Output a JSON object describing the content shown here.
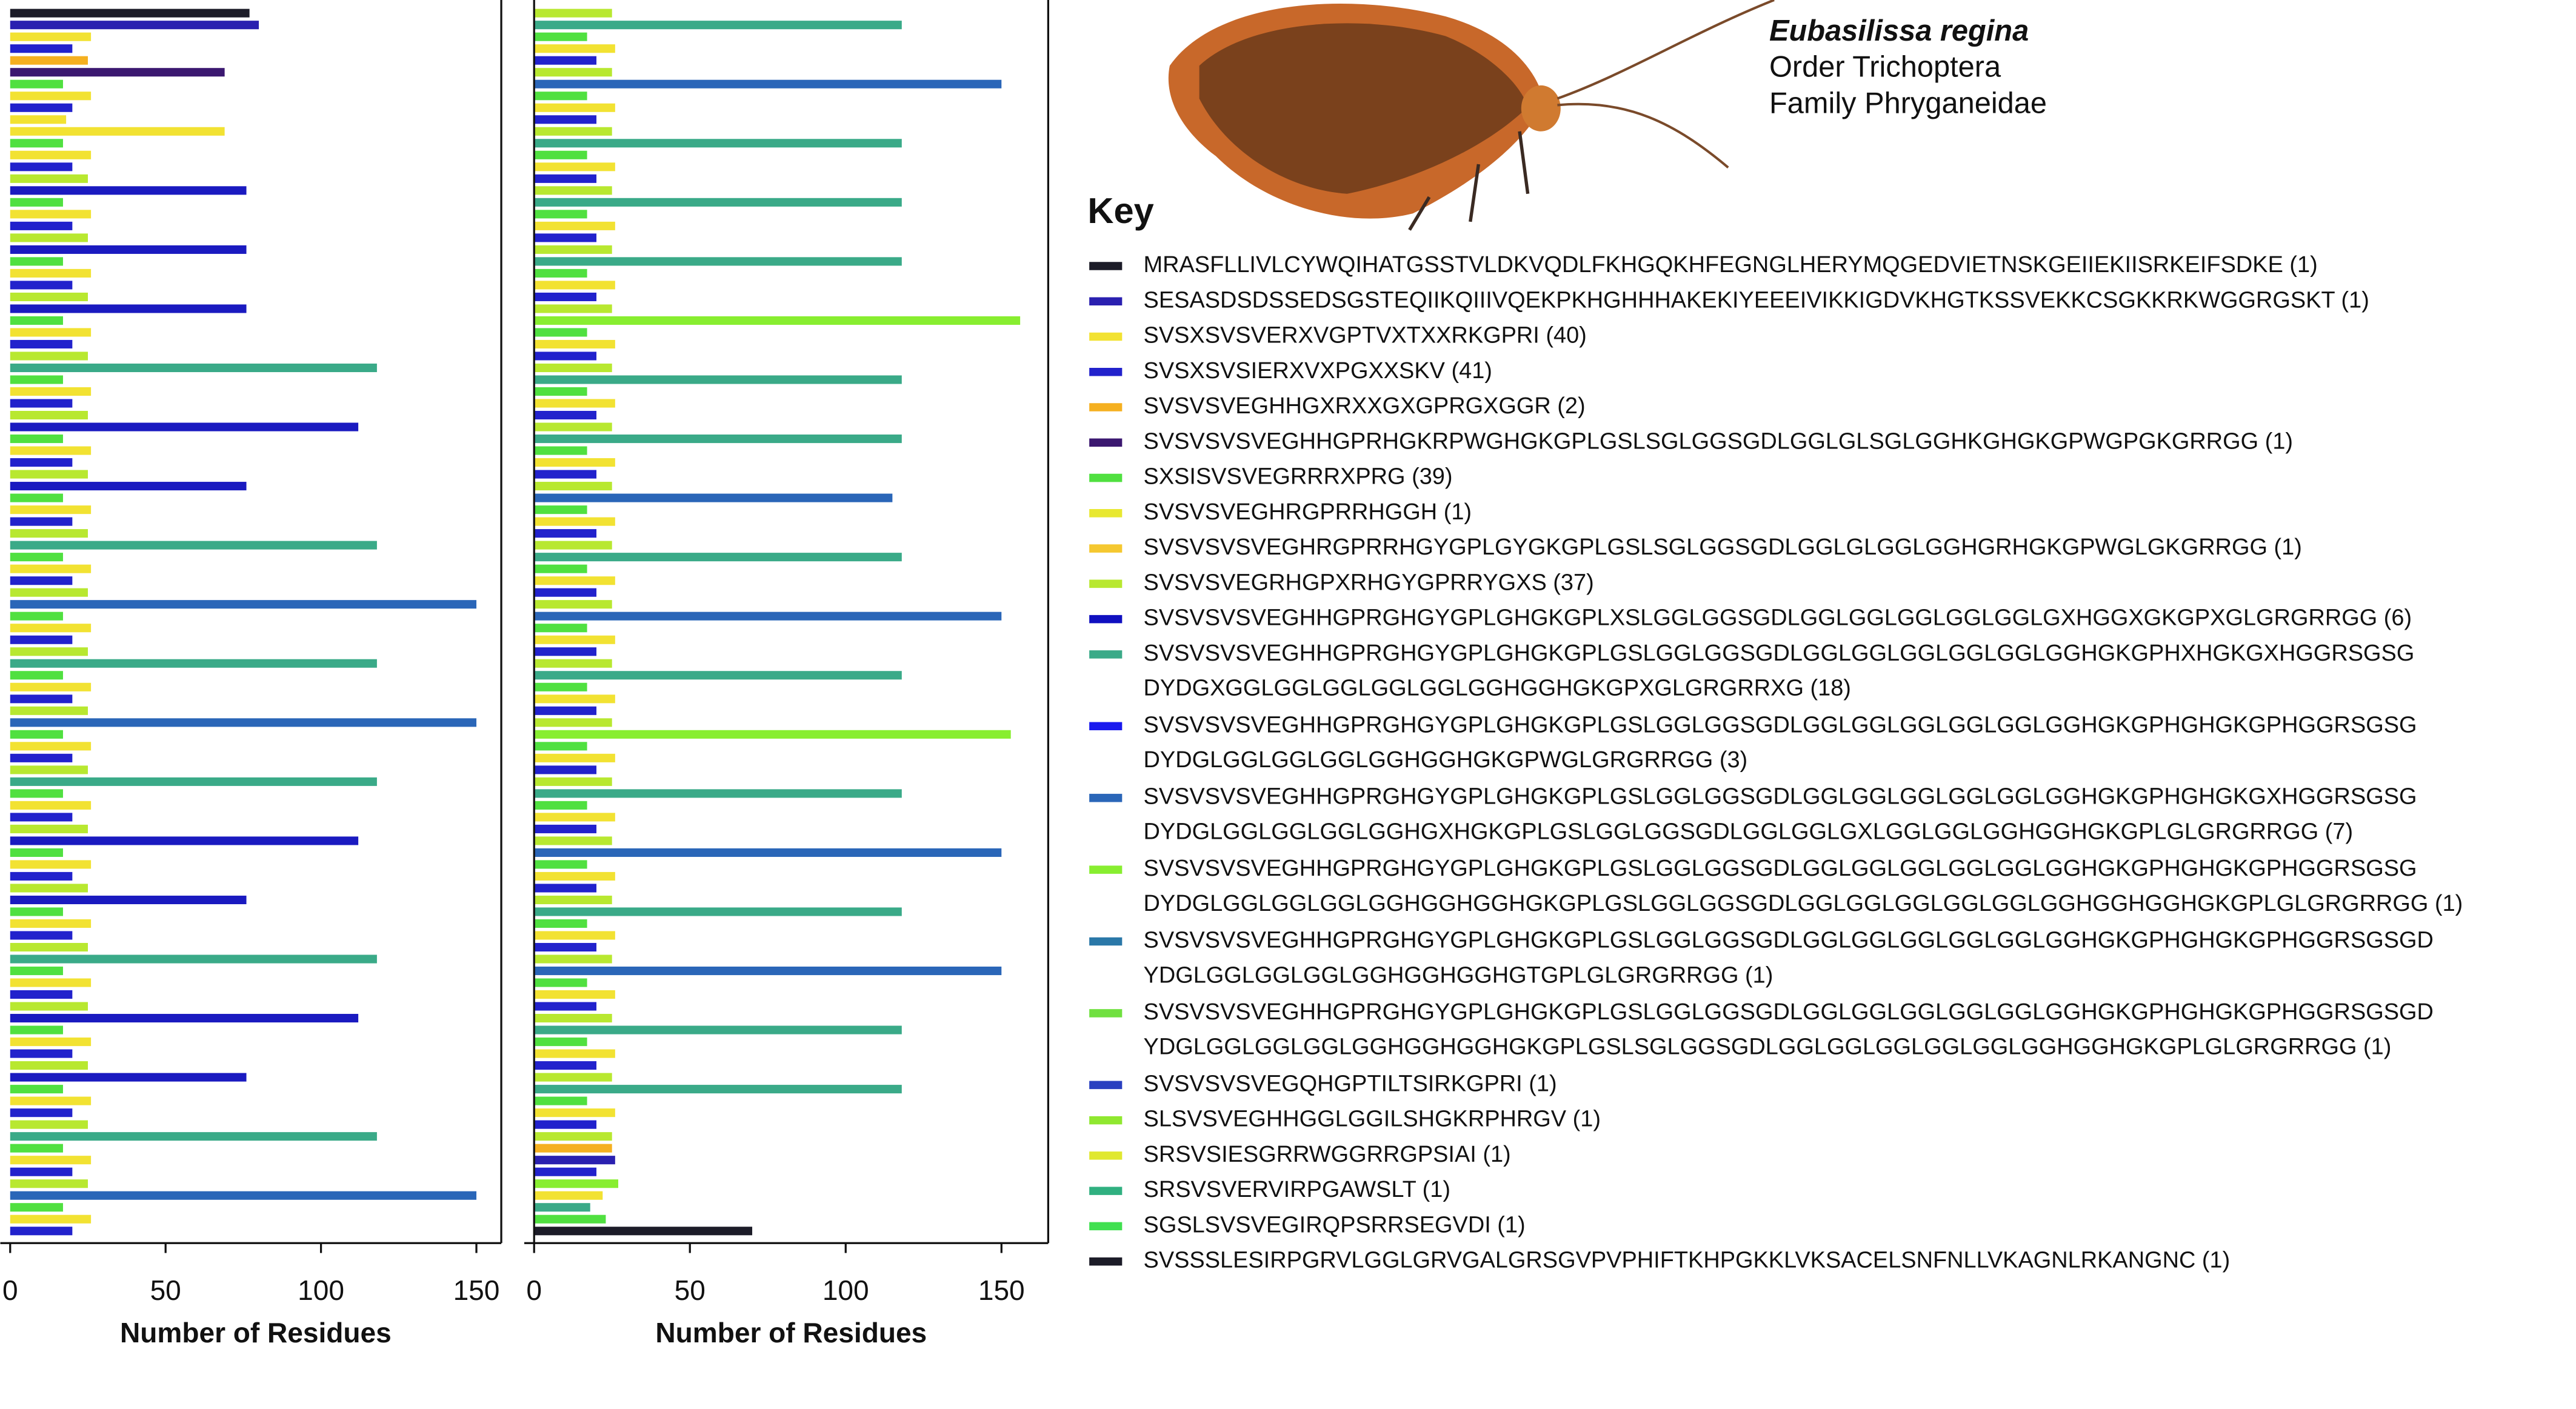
{
  "species": {
    "name": "Eubasilissa regina",
    "order": "Order Trichoptera",
    "family": "Family Phryganeidae"
  },
  "chart_data": [
    {
      "type": "bar",
      "orientation": "horizontal",
      "xlabel": "Number of Residues",
      "xlim": [
        0,
        158
      ],
      "xticks": [
        0,
        50,
        100,
        150
      ],
      "values": [
        77,
        80,
        26,
        20,
        25,
        69,
        17,
        26,
        20,
        18,
        69,
        17,
        26,
        20,
        25,
        76,
        17,
        26,
        20,
        25,
        76,
        17,
        26,
        20,
        25,
        76,
        17,
        26,
        20,
        25,
        118,
        17,
        26,
        20,
        25,
        112,
        17,
        26,
        20,
        25,
        76,
        17,
        26,
        20,
        25,
        118,
        17,
        26,
        20,
        25,
        150,
        17,
        26,
        20,
        25,
        118,
        17,
        26,
        20,
        25,
        150,
        17,
        26,
        20,
        25,
        118,
        17,
        26,
        20,
        25,
        112,
        17,
        26,
        20,
        25,
        76,
        17,
        26,
        20,
        25,
        118,
        17,
        26,
        20,
        25,
        112,
        17,
        26,
        20,
        25,
        76,
        17,
        26,
        20,
        25,
        118,
        17,
        26,
        20,
        25,
        150,
        17,
        26,
        20
      ],
      "colors": [
        "#1c1c28",
        "#2a20b0",
        "#f2e232",
        "#2222cc",
        "#f5b020",
        "#3b1870",
        "#50e040",
        "#f2e232",
        "#2222cc",
        "#f2e232",
        "#f2e232",
        "#50e040",
        "#f2e232",
        "#2222cc",
        "#b8e830",
        "#1a1ac0",
        "#50e040",
        "#f2e232",
        "#2222cc",
        "#b8e830",
        "#1a1ac0",
        "#50e040",
        "#f2e232",
        "#2222cc",
        "#b8e830",
        "#1a1ac0",
        "#50e040",
        "#f2e232",
        "#2222cc",
        "#b8e830",
        "#3aaa88",
        "#50e040",
        "#f2e232",
        "#2222cc",
        "#b8e830",
        "#1a1ac0",
        "#50e040",
        "#f2e232",
        "#2222cc",
        "#b8e830",
        "#1a1ac0",
        "#50e040",
        "#f2e232",
        "#2222cc",
        "#b8e830",
        "#3aaa88",
        "#50e040",
        "#f2e232",
        "#2222cc",
        "#b8e830",
        "#2a66b8",
        "#50e040",
        "#f2e232",
        "#2222cc",
        "#b8e830",
        "#3aaa88",
        "#50e040",
        "#f2e232",
        "#2222cc",
        "#b8e830",
        "#2a66b8",
        "#50e040",
        "#f2e232",
        "#2222cc",
        "#b8e830",
        "#3aaa88",
        "#50e040",
        "#f2e232",
        "#2222cc",
        "#b8e830",
        "#1a1ac0",
        "#50e040",
        "#f2e232",
        "#2222cc",
        "#b8e830",
        "#1a1ac0",
        "#50e040",
        "#f2e232",
        "#2222cc",
        "#b8e830",
        "#3aaa88",
        "#50e040",
        "#f2e232",
        "#2222cc",
        "#b8e830",
        "#1a1ac0",
        "#50e040",
        "#f2e232",
        "#2222cc",
        "#b8e830",
        "#1a1ac0",
        "#50e040",
        "#f2e232",
        "#2222cc",
        "#b8e830",
        "#3aaa88",
        "#50e040",
        "#f2e232",
        "#2222cc",
        "#b8e830",
        "#2a66b8",
        "#50e040",
        "#f2e232",
        "#2222cc"
      ]
    },
    {
      "type": "bar",
      "orientation": "horizontal",
      "xlabel": "Number of Residues",
      "xlim": [
        0,
        165
      ],
      "xticks": [
        0,
        50,
        100,
        150
      ],
      "values": [
        25,
        118,
        17,
        26,
        20,
        25,
        150,
        17,
        26,
        20,
        25,
        118,
        17,
        26,
        20,
        25,
        118,
        17,
        26,
        20,
        25,
        118,
        17,
        26,
        20,
        25,
        156,
        17,
        26,
        20,
        25,
        118,
        17,
        26,
        20,
        25,
        118,
        17,
        26,
        20,
        25,
        115,
        17,
        26,
        20,
        25,
        118,
        17,
        26,
        20,
        25,
        150,
        17,
        26,
        20,
        25,
        118,
        17,
        26,
        20,
        25,
        153,
        17,
        26,
        20,
        25,
        118,
        17,
        26,
        20,
        25,
        150,
        17,
        26,
        20,
        25,
        118,
        17,
        26,
        20,
        25,
        150,
        17,
        26,
        20,
        25,
        118,
        17,
        26,
        20,
        25,
        118,
        17,
        26,
        20,
        25,
        25,
        26,
        20,
        27,
        22,
        18,
        23,
        70
      ],
      "colors": [
        "#b8e830",
        "#3aaa88",
        "#50e040",
        "#f2e232",
        "#2222cc",
        "#b8e830",
        "#2a66b8",
        "#50e040",
        "#f2e232",
        "#2222cc",
        "#b8e830",
        "#3aaa88",
        "#50e040",
        "#f2e232",
        "#2222cc",
        "#b8e830",
        "#3aaa88",
        "#50e040",
        "#f2e232",
        "#2222cc",
        "#b8e830",
        "#3aaa88",
        "#50e040",
        "#f2e232",
        "#2222cc",
        "#b8e830",
        "#88ee30",
        "#50e040",
        "#f2e232",
        "#2222cc",
        "#b8e830",
        "#3aaa88",
        "#50e040",
        "#f2e232",
        "#2222cc",
        "#b8e830",
        "#3aaa88",
        "#50e040",
        "#f2e232",
        "#2222cc",
        "#b8e830",
        "#2a66b8",
        "#50e040",
        "#f2e232",
        "#2222cc",
        "#b8e830",
        "#3aaa88",
        "#50e040",
        "#f2e232",
        "#2222cc",
        "#b8e830",
        "#2a66b8",
        "#50e040",
        "#f2e232",
        "#2222cc",
        "#b8e830",
        "#3aaa88",
        "#50e040",
        "#f2e232",
        "#2222cc",
        "#b8e830",
        "#88ee30",
        "#50e040",
        "#f2e232",
        "#2222cc",
        "#b8e830",
        "#3aaa88",
        "#50e040",
        "#f2e232",
        "#2222cc",
        "#b8e830",
        "#2a66b8",
        "#50e040",
        "#f2e232",
        "#2222cc",
        "#b8e830",
        "#3aaa88",
        "#50e040",
        "#f2e232",
        "#2222cc",
        "#b8e830",
        "#2a66b8",
        "#50e040",
        "#f2e232",
        "#2222cc",
        "#b8e830",
        "#3aaa88",
        "#50e040",
        "#f2e232",
        "#2222cc",
        "#b8e830",
        "#3aaa88",
        "#50e040",
        "#f2e232",
        "#2222cc",
        "#b8e830",
        "#f5b020",
        "#2a20b0",
        "#2222cc",
        "#88ee30",
        "#f2e232",
        "#3aaa88",
        "#50e040",
        "#1c1c28"
      ]
    }
  ],
  "key": {
    "title": "Key",
    "entries": [
      {
        "color": "#1c1c28",
        "lines": [
          "MRASFLLIVLCYWQIHATGSSTVLDKVQDLFKHGQKHFEGNGLHERYMQGEDVIETNSKGEIIEKIISRKEIFSDKE (1)"
        ]
      },
      {
        "color": "#2a20b0",
        "lines": [
          "SESASDSDSSEDSGSTEQIIKQIIIVQEKPKHGHHHAKEKIYEEEIVIKKIGDVKHGTKSSVEKKCSGKKRKWGGRGSKT (1)"
        ]
      },
      {
        "color": "#f2e232",
        "lines": [
          "SVSXSVSVERXVGPTVXTXXRKGPRI (40)"
        ]
      },
      {
        "color": "#2222cc",
        "lines": [
          "SVSXSVSIERXVXPGXXSKV (41)"
        ]
      },
      {
        "color": "#f5b020",
        "lines": [
          "SVSVSVEGHHGXRXXGXGPRGXGGR (2)"
        ]
      },
      {
        "color": "#3b1870",
        "lines": [
          "SVSVSVSVEGHHGPRHGKRPWGHGKGPLGSLSGLGGSGDLGGLGLSGLGGHKGHGKGPWGPGKGRRGG (1)"
        ]
      },
      {
        "color": "#50e040",
        "lines": [
          "SXSISVSVEGRRRXPRG (39)"
        ]
      },
      {
        "color": "#e8e830",
        "lines": [
          "SVSVSVEGHRGPRRHGGH (1)"
        ]
      },
      {
        "color": "#f5c830",
        "lines": [
          "SVSVSVSVEGHRGPRRHGYGPLGYGKGPLGSLSGLGGSGDLGGLGLGGLGGHGRHGKGPWGLGKGRRGG (1)"
        ]
      },
      {
        "color": "#b8e830",
        "lines": [
          "SVSVSVEGRHGPXRHGYGPRRYGXS (37)"
        ]
      },
      {
        "color": "#1010c0",
        "lines": [
          "SVSVSVSVEGHHGPRGHGYGPLGHGKGPLXSLGGLGGSGDLGGLGGLGGLGGLGGLGXHGGXGKGPXGLGRGRRGG (6)"
        ]
      },
      {
        "color": "#3aaa88",
        "lines": [
          "SVSVSVSVEGHHGPRGHGYGPLGHGKGPLGSLGGLGGSGDLGGLGGLGGLGGLGGLGGHGKGPHXHGKGXHGGRSGSG",
          "DYDGXGGLGGLGGLGGLGGLGGHGGHGKGPXGLGRGRRXG (18)"
        ]
      },
      {
        "color": "#1a1aee",
        "lines": [
          "SVSVSVSVEGHHGPRGHGYGPLGHGKGPLGSLGGLGGSGDLGGLGGLGGLGGLGGLGGHGKGPHGHGKGPHGGRSGSG",
          "DYDGLGGLGGLGGLGGHGGHGKGPWGLGRGRRGG (3)"
        ]
      },
      {
        "color": "#2a66b8",
        "lines": [
          "SVSVSVSVEGHHGPRGHGYGPLGHGKGPLGSLGGLGGSGDLGGLGGLGGLGGLGGLGGHGKGPHGHGKGXHGGRSGSG",
          "DYDGLGGLGGLGGLGGHGXHGKGPLGSLGGLGGSGDLGGLGGLGXLGGLGGLGGHGGHGKGPLGLGRGRRGG (7)"
        ]
      },
      {
        "color": "#88ee30",
        "lines": [
          "SVSVSVSVEGHHGPRGHGYGPLGHGKGPLGSLGGLGGSGDLGGLGGLGGLGGLGGLGGHGKGPHGHGKGPHGGRSGSG",
          "DYDGLGGLGGLGGLGGHGGHGGHGKGPLGSLGGLGGSGDLGGLGGLGGLGGLGGLGGHGGHGGHGKGPLGLGRGRRGG (1)"
        ]
      },
      {
        "color": "#2a78a8",
        "lines": [
          "SVSVSVSVEGHHGPRGHGYGPLGHGKGPLGSLGGLGGSGDLGGLGGLGGLGGLGGLGGHGKGPHGHGKGPHGGRSGSGD",
          "YDGLGGLGGLGGLGGHGGHGGHGTGPLGLGRGRRGG (1)"
        ]
      },
      {
        "color": "#70e040",
        "lines": [
          "SVSVSVSVEGHHGPRGHGYGPLGHGKGPLGSLGGLGGSGDLGGLGGLGGLGGLGGLGGHGKGPHGHGKGPHGGRSGSGD",
          "YDGLGGLGGLGGLGGHGGHGGHGKGPLGSLSGLGGSGDLGGLGGLGGLGGLGGLGGHGGHGKGPLGLGRGRRGG (1)"
        ]
      },
      {
        "color": "#2a40c0",
        "lines": [
          "SVSVSVSVEGQHGPTILTSIRKGPRI (1)"
        ]
      },
      {
        "color": "#90e830",
        "lines": [
          "SLSVSVEGHHGGLGGILSHGKRPHRGV (1)"
        ]
      },
      {
        "color": "#e0e830",
        "lines": [
          "SRSVSIESGRRWGGRRGPSIAI (1)"
        ]
      },
      {
        "color": "#30b080",
        "lines": [
          "SRSVSVERVIRPGAWSLT (1)"
        ]
      },
      {
        "color": "#40e050",
        "lines": [
          "SGSLSVSVEGIRQPSRRSEGVDI (1)"
        ]
      },
      {
        "color": "#1c1c28",
        "lines": [
          "SVSSSLESIRPGRVLGGLGRVGALGRSGVPVPHIFTKHPGKKLVKSACELSNFNLLVKAGNLRKANGNC (1)"
        ]
      }
    ]
  }
}
